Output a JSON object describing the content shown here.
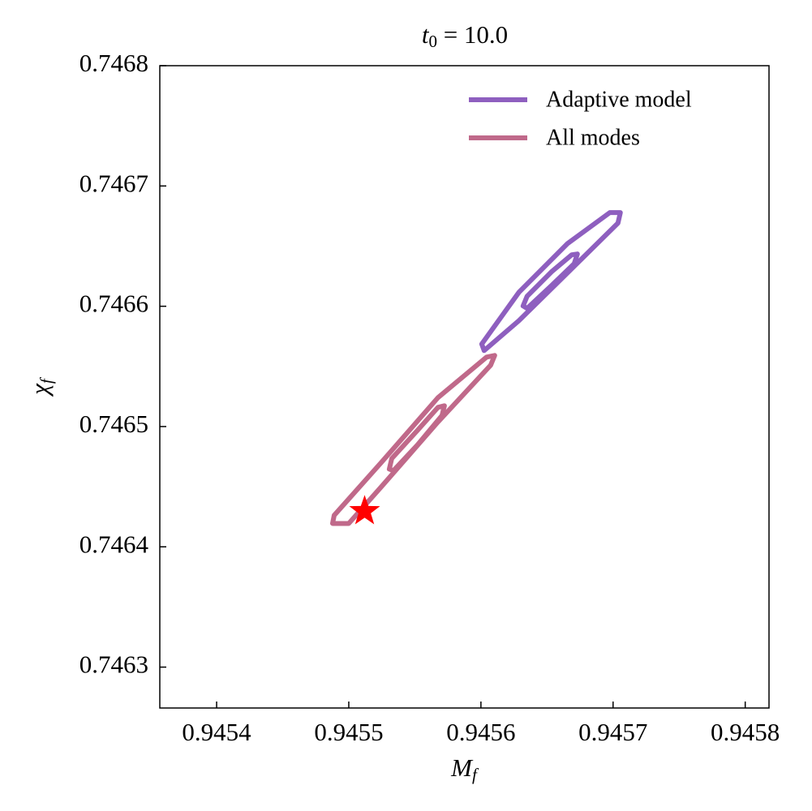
{
  "chart_data": {
    "type": "contour",
    "title": {
      "symbol": "t",
      "subscript": "0",
      "text": " = 10.0"
    },
    "xlabel": {
      "symbol": "M",
      "subscript": "f"
    },
    "ylabel": {
      "symbol": "χ",
      "subscript": "f"
    },
    "xlim": [
      0.945357,
      0.945818
    ],
    "ylim": [
      0.746266,
      0.7468
    ],
    "xticks": [
      0.9454,
      0.9455,
      0.9456,
      0.9457,
      0.9458
    ],
    "yticks": [
      0.7463,
      0.7464,
      0.7465,
      0.7466,
      0.7467,
      0.7468
    ],
    "legend": "upper right",
    "series": [
      {
        "name": "Adaptive model",
        "color": "#8e5fbf",
        "contours": [
          {
            "x": [
              0.94570552,
              0.94570368,
              0.94566564,
              0.94562883,
              0.94560245,
              0.94560061,
              0.94562883,
              0.94566564,
              0.94569755
            ],
            "y": [
              0.74667787,
              0.7466691,
              0.74662794,
              0.74658812,
              0.74656316,
              0.74656856,
              0.74661174,
              0.74665223,
              0.74667787
            ]
          },
          {
            "x": [
              0.94567301,
              0.94567055,
              0.94565337,
              0.94563497,
              0.9456319,
              0.94563497,
              0.94565337,
              0.94566871
            ],
            "y": [
              0.74664345,
              0.74663536,
              0.74661714,
              0.74659825,
              0.74660027,
              0.74660837,
              0.74662861,
              0.74664278
            ]
          }
        ]
      },
      {
        "name": "All modes",
        "color": "#c0698a",
        "contours": [
          {
            "x": [
              0.94561043,
              0.94560736,
              0.94556748,
              0.94552454,
              0.9455,
              0.94548773,
              0.94548896,
              0.94552454,
              0.94556748,
              0.94560429
            ],
            "y": [
              0.74655911,
              0.74655101,
              0.74650378,
              0.7464498,
              0.74641943,
              0.74641943,
              0.74642618,
              0.74647004,
              0.74652402,
              0.74655776
            ]
          },
          {
            "x": [
              0.94557239,
              0.94557055,
              0.94555215,
              0.94553374,
              0.94553067,
              0.94553252,
              0.94555215,
              0.94556748
            ],
            "y": [
              0.74651727,
              0.74650918,
              0.74648489,
              0.74646329,
              0.74646464,
              0.74647341,
              0.74649703,
              0.74651592
            ]
          }
        ]
      }
    ],
    "marker": {
      "x": 0.945512,
      "y": 0.7464296,
      "color": "#ff0000"
    }
  }
}
